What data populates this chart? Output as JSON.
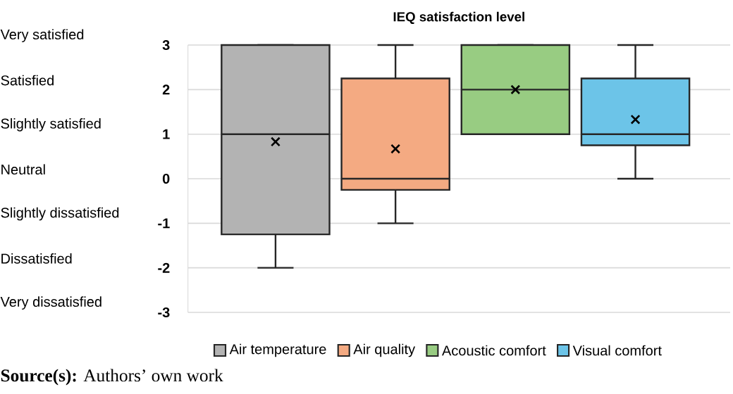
{
  "chart_data": {
    "type": "box",
    "title": "IEQ satisfaction level",
    "categories": [
      null
    ],
    "series": [
      {
        "name": "Air temperature",
        "color": "#b3b3b3",
        "boxes": [
          {
            "low": -2,
            "q1": -1.25,
            "median": 1,
            "q3": 3,
            "high": 3,
            "mean": 0.83
          }
        ]
      },
      {
        "name": "Air quality",
        "color": "#f4aa82",
        "boxes": [
          {
            "low": -1,
            "q1": -0.25,
            "median": 0,
            "q3": 2.25,
            "high": 3,
            "mean": 0.67
          }
        ]
      },
      {
        "name": "Acoustic comfort",
        "color": "#98cc82",
        "boxes": [
          {
            "low": 1,
            "q1": 1,
            "median": 2,
            "q3": 3,
            "high": 3,
            "mean": 2
          }
        ]
      },
      {
        "name": "Visual comfort",
        "color": "#6cc4e8",
        "boxes": [
          {
            "low": 0,
            "q1": 0.75,
            "median": 1,
            "q3": 2.25,
            "high": 3,
            "mean": 1.33
          }
        ]
      }
    ],
    "ylim": [
      -3,
      3
    ],
    "yticks": [
      -3,
      -2,
      -1,
      0,
      1,
      2,
      3
    ],
    "grid": "y",
    "legend": "bottom",
    "marker": "cross",
    "annotations": [
      "Very satisfied",
      "Satisfied",
      "Slightly satisfied",
      "Neutral",
      "Slightly dissatisfied",
      "Dissatisfied",
      "Very dissatisfied",
      "**Source(s):** Authors’ own work"
    ]
  }
}
